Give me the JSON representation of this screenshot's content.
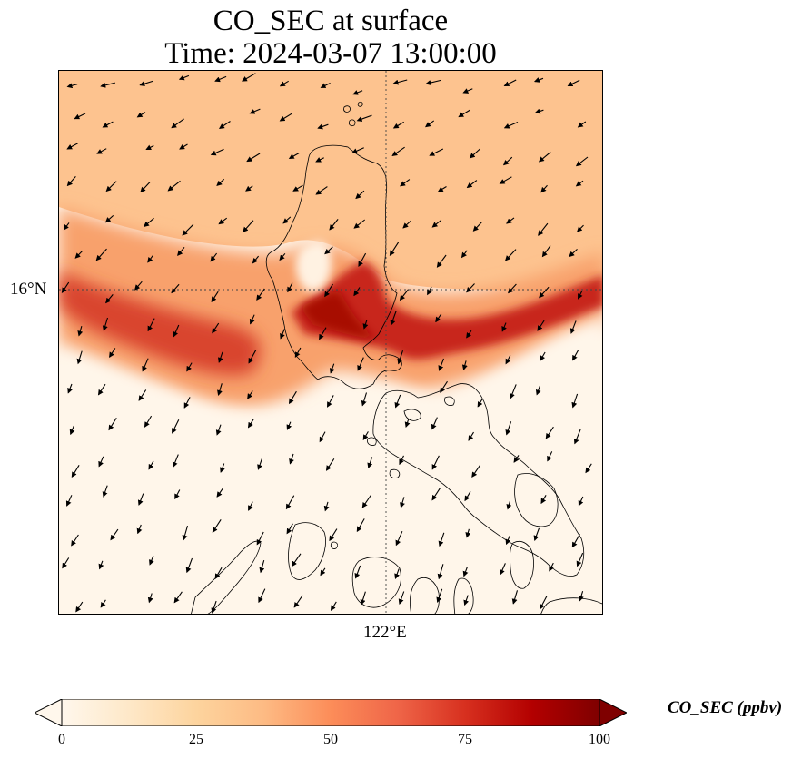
{
  "title": {
    "line1": "CO_SEC at surface",
    "line2": "Time: 2024-03-07 13:00:00"
  },
  "map": {
    "lat_tick_label": "16°N",
    "lon_tick_label": "122°E",
    "field": "CO_SEC",
    "gridlines": "dotted"
  },
  "colorbar": {
    "label": "CO_SEC (ppbv)",
    "ticks": [
      "0",
      "25",
      "50",
      "75",
      "100"
    ],
    "min": 0,
    "max": 100,
    "colormap": "OrRd",
    "extend": "both",
    "colors": [
      "#fff7ec",
      "#fee8c8",
      "#fdd49e",
      "#fdbb84",
      "#fc8d59",
      "#ef6548",
      "#d7301f",
      "#b30000",
      "#7f0000"
    ]
  }
}
